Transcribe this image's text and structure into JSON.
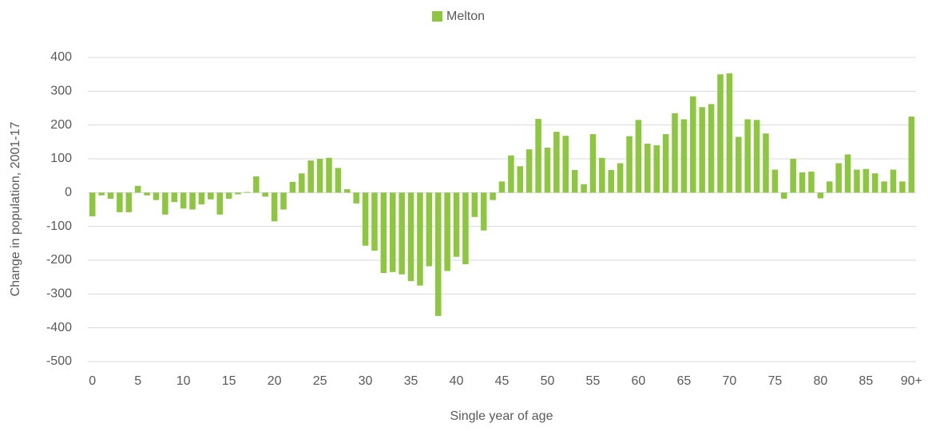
{
  "chart_data": {
    "type": "bar",
    "xlabel": "Single year of age",
    "ylabel": "Change in population, 2001-17",
    "categories": [
      "0",
      null,
      null,
      null,
      null,
      "5",
      null,
      null,
      null,
      null,
      "10",
      null,
      null,
      null,
      null,
      "15",
      null,
      null,
      null,
      null,
      "20",
      null,
      null,
      null,
      null,
      "25",
      null,
      null,
      null,
      null,
      "30",
      null,
      null,
      null,
      null,
      "35",
      null,
      null,
      null,
      null,
      "40",
      null,
      null,
      null,
      null,
      "45",
      null,
      null,
      null,
      null,
      "50",
      null,
      null,
      null,
      null,
      "55",
      null,
      null,
      null,
      null,
      "60",
      null,
      null,
      null,
      null,
      "65",
      null,
      null,
      null,
      null,
      "70",
      null,
      null,
      null,
      null,
      "75",
      null,
      null,
      null,
      null,
      "80",
      null,
      null,
      null,
      null,
      "85",
      null,
      null,
      null,
      null,
      "90+"
    ],
    "series": [
      {
        "name": "Melton",
        "color": "#8dc63f",
        "values": [
          -70,
          -8,
          -18,
          -58,
          -58,
          20,
          -8,
          -22,
          -65,
          -28,
          -47,
          -50,
          -35,
          -20,
          -65,
          -18,
          -5,
          2,
          48,
          -12,
          -85,
          -50,
          32,
          57,
          95,
          100,
          103,
          73,
          10,
          -32,
          -157,
          -172,
          -238,
          -235,
          -242,
          -262,
          -275,
          -218,
          -365,
          -232,
          -190,
          -212,
          -72,
          -112,
          -22,
          33,
          110,
          78,
          128,
          218,
          133,
          180,
          168,
          67,
          25,
          173,
          103,
          67,
          87,
          167,
          215,
          145,
          140,
          173,
          235,
          217,
          285,
          253,
          262,
          350,
          353,
          165,
          217,
          215,
          175,
          68,
          -18,
          100,
          60,
          62,
          -17,
          33,
          87,
          113,
          68,
          70,
          57,
          33,
          68,
          33,
          225
        ]
      }
    ],
    "ylim": [
      -500,
      400
    ],
    "yticks": [
      400,
      300,
      200,
      100,
      0,
      -100,
      -200,
      -300,
      -400,
      -500
    ],
    "grid": true,
    "legend": "top"
  }
}
